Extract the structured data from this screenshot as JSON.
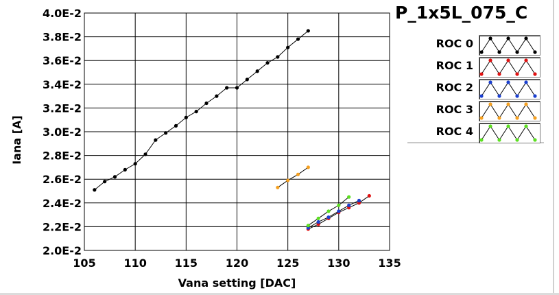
{
  "panel_title": "P_1x5L_075_C",
  "chart_data": {
    "type": "scatter",
    "xlabel": "Vana setting [DAC]",
    "ylabel": "Iana [A]",
    "xlim": [
      105,
      135
    ],
    "ylim": [
      0.02,
      0.04
    ],
    "x_ticks": [
      105,
      110,
      115,
      120,
      125,
      130,
      135
    ],
    "x_tick_labels": [
      "105",
      "110",
      "115",
      "120",
      "125",
      "130",
      "135"
    ],
    "y_ticks": [
      0.02,
      0.022,
      0.024,
      0.026,
      0.028,
      0.03,
      0.032,
      0.034,
      0.036,
      0.038,
      0.04
    ],
    "y_tick_labels": [
      "2.0E-2",
      "2.2E-2",
      "2.4E-2",
      "2.6E-2",
      "2.8E-2",
      "3.0E-2",
      "3.2E-2",
      "3.4E-2",
      "3.6E-2",
      "3.8E-2",
      "4.0E-2"
    ],
    "grid": true,
    "legend_position": "top-right, outside plot",
    "series": [
      {
        "name": "ROC 0",
        "color": "#000000",
        "x": [
          106,
          107,
          108,
          109,
          110,
          111,
          112,
          113,
          114,
          115,
          116,
          117,
          118,
          119,
          120,
          121,
          122,
          123,
          124,
          125,
          126,
          127
        ],
        "y": [
          0.0251,
          0.0258,
          0.0262,
          0.0268,
          0.0273,
          0.0281,
          0.0293,
          0.0299,
          0.0305,
          0.0312,
          0.0317,
          0.0324,
          0.033,
          0.0337,
          0.0337,
          0.0344,
          0.0351,
          0.0358,
          0.0363,
          0.0371,
          0.0378,
          0.0385
        ]
      },
      {
        "name": "ROC 1",
        "color": "#e01010",
        "x": [
          127,
          128,
          129,
          130,
          131,
          132,
          133
        ],
        "y": [
          0.0218,
          0.0222,
          0.0227,
          0.0232,
          0.0236,
          0.024,
          0.0246
        ]
      },
      {
        "name": "ROC 2",
        "color": "#1a3fd0",
        "x": [
          127,
          128,
          129,
          130,
          131,
          132
        ],
        "y": [
          0.0219,
          0.0224,
          0.0228,
          0.0233,
          0.0238,
          0.0242
        ]
      },
      {
        "name": "ROC 3",
        "color": "#f5a020",
        "x": [
          124,
          125,
          126,
          127
        ],
        "y": [
          0.0253,
          0.0259,
          0.0264,
          0.027
        ]
      },
      {
        "name": "ROC 4",
        "color": "#5ce020",
        "x": [
          127,
          128,
          129,
          130,
          131
        ],
        "y": [
          0.0221,
          0.0227,
          0.0233,
          0.0238,
          0.0245
        ]
      }
    ]
  }
}
